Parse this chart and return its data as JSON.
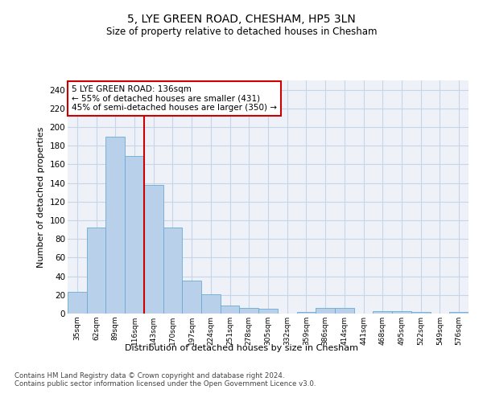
{
  "title1": "5, LYE GREEN ROAD, CHESHAM, HP5 3LN",
  "title2": "Size of property relative to detached houses in Chesham",
  "xlabel": "Distribution of detached houses by size in Chesham",
  "ylabel": "Number of detached properties",
  "categories": [
    "35sqm",
    "62sqm",
    "89sqm",
    "116sqm",
    "143sqm",
    "170sqm",
    "197sqm",
    "224sqm",
    "251sqm",
    "278sqm",
    "305sqm",
    "332sqm",
    "359sqm",
    "386sqm",
    "414sqm",
    "441sqm",
    "468sqm",
    "495sqm",
    "522sqm",
    "549sqm",
    "576sqm"
  ],
  "values": [
    23,
    92,
    190,
    169,
    138,
    92,
    35,
    21,
    9,
    6,
    5,
    0,
    2,
    6,
    6,
    0,
    3,
    3,
    2,
    0,
    2
  ],
  "bar_color": "#b8d0ea",
  "bar_edge_color": "#6aaad4",
  "grid_color": "#c8d4e8",
  "vline_color": "#cc0000",
  "annotation_text": "5 LYE GREEN ROAD: 136sqm\n← 55% of detached houses are smaller (431)\n45% of semi-detached houses are larger (350) →",
  "annotation_box_color": "white",
  "annotation_box_edge": "#cc0000",
  "ylim": [
    0,
    250
  ],
  "yticks": [
    0,
    20,
    40,
    60,
    80,
    100,
    120,
    140,
    160,
    180,
    200,
    220,
    240
  ],
  "footer": "Contains HM Land Registry data © Crown copyright and database right 2024.\nContains public sector information licensed under the Open Government Licence v3.0.",
  "bg_color": "#eef2f8"
}
